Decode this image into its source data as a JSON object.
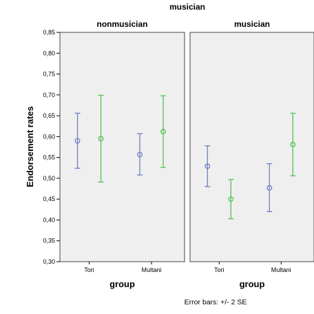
{
  "chart_data": {
    "type": "errorbar",
    "title": "musician",
    "ylabel": "Endorsement rates",
    "xlabel": "group",
    "ylim": [
      0.3,
      0.85
    ],
    "yticks": [
      "0,30",
      "0,35",
      "0,40",
      "0,45",
      "0,50",
      "0,55",
      "0,60",
      "0,65",
      "0,70",
      "0,75",
      "0,80",
      "0,85"
    ],
    "categories": [
      "Tori",
      "Multani"
    ],
    "footnote": "Error bars: +/- 2 SE",
    "colors": {
      "series_a": "#6f7fc0",
      "series_b": "#55c05a",
      "panel_bg": "#efefef"
    },
    "panels": [
      {
        "title": "nonmusician",
        "series": [
          {
            "values": [
              0.59,
              0.557
            ],
            "lower": [
              0.524,
              0.508
            ],
            "upper": [
              0.656,
              0.607
            ]
          },
          {
            "values": [
              0.595,
              0.612
            ],
            "lower": [
              0.491,
              0.526
            ],
            "upper": [
              0.699,
              0.698
            ]
          }
        ]
      },
      {
        "title": "musician",
        "series": [
          {
            "values": [
              0.529,
              0.477
            ],
            "lower": [
              0.48,
              0.42
            ],
            "upper": [
              0.578,
              0.535
            ]
          },
          {
            "values": [
              0.45,
              0.581
            ],
            "lower": [
              0.403,
              0.506
            ],
            "upper": [
              0.497,
              0.656
            ]
          }
        ]
      }
    ]
  }
}
